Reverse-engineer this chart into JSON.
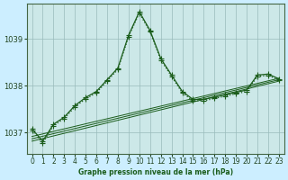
{
  "title": "Graphe pression niveau de la mer (hPa)",
  "bg_color": "#cceeff",
  "plot_bg_color": "#cce8e8",
  "grid_color": "#99bbbb",
  "line_color": "#1a5c1a",
  "xlim": [
    -0.5,
    23.5
  ],
  "ylim": [
    1036.55,
    1039.75
  ],
  "yticks": [
    1037,
    1038,
    1039
  ],
  "xticks": [
    0,
    1,
    2,
    3,
    4,
    5,
    6,
    7,
    8,
    9,
    10,
    11,
    12,
    13,
    14,
    15,
    16,
    17,
    18,
    19,
    20,
    21,
    22,
    23
  ],
  "series": [
    {
      "x": [
        0,
        1,
        2,
        3,
        4,
        5,
        6,
        7,
        8,
        9,
        10,
        11,
        12,
        13,
        14,
        15,
        16,
        17,
        18,
        19,
        20,
        21,
        22,
        23
      ],
      "y": [
        1037.05,
        1036.78,
        1037.15,
        1037.3,
        1037.55,
        1037.72,
        1037.85,
        1038.1,
        1038.35,
        1039.05,
        1039.55,
        1039.15,
        1038.55,
        1038.2,
        1037.85,
        1037.68,
        1037.68,
        1037.73,
        1037.78,
        1037.83,
        1037.88,
        1038.2,
        1038.22,
        1038.12
      ],
      "linestyle": ":",
      "linewidth": 0.9,
      "marker": "+",
      "markersize": 4
    },
    {
      "x": [
        0,
        1,
        2,
        3,
        4,
        5,
        6,
        7,
        8,
        9,
        10,
        11,
        12,
        13,
        14,
        15,
        16,
        17,
        18,
        19,
        20,
        21,
        22,
        23
      ],
      "y": [
        1037.08,
        1036.82,
        1037.18,
        1037.33,
        1037.58,
        1037.75,
        1037.88,
        1038.13,
        1038.38,
        1039.08,
        1039.58,
        1039.18,
        1038.58,
        1038.23,
        1037.88,
        1037.71,
        1037.71,
        1037.76,
        1037.81,
        1037.86,
        1037.91,
        1038.23,
        1038.25,
        1038.15
      ],
      "linestyle": "-",
      "linewidth": 0.9,
      "marker": "+",
      "markersize": 4
    },
    {
      "x": [
        0,
        23
      ],
      "y": [
        1036.82,
        1038.1
      ],
      "linestyle": "-",
      "linewidth": 0.7,
      "marker": null,
      "markersize": 0
    },
    {
      "x": [
        0,
        23
      ],
      "y": [
        1036.87,
        1038.13
      ],
      "linestyle": "-",
      "linewidth": 0.7,
      "marker": null,
      "markersize": 0
    },
    {
      "x": [
        0,
        23
      ],
      "y": [
        1036.92,
        1038.16
      ],
      "linestyle": "-",
      "linewidth": 0.7,
      "marker": null,
      "markersize": 0
    }
  ]
}
